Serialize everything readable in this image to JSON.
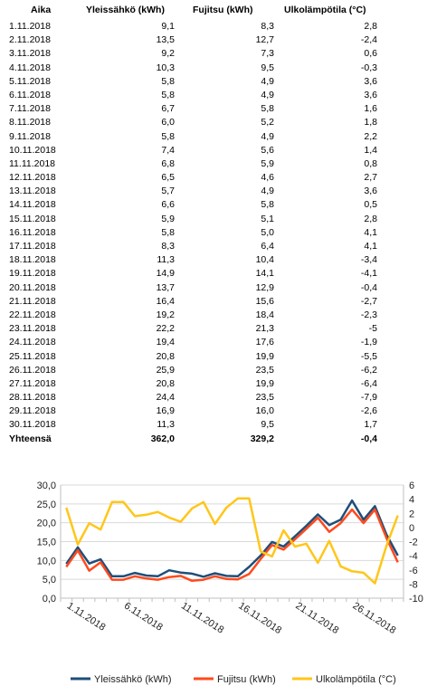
{
  "table": {
    "headers": [
      "Aika",
      "Yleissähkö (kWh)",
      "Fujitsu (kWh)",
      "Ulkolämpötila (°C)"
    ],
    "rows": [
      [
        "1.11.2018",
        "9,1",
        "8,3",
        "2,8"
      ],
      [
        "2.11.2018",
        "13,5",
        "12,7",
        "-2,4"
      ],
      [
        "3.11.2018",
        "9,2",
        "7,3",
        "0,6"
      ],
      [
        "4.11.2018",
        "10,3",
        "9,5",
        "-0,3"
      ],
      [
        "5.11.2018",
        "5,8",
        "4,9",
        "3,6"
      ],
      [
        "6.11.2018",
        "5,8",
        "4,9",
        "3,6"
      ],
      [
        "7.11.2018",
        "6,7",
        "5,8",
        "1,6"
      ],
      [
        "8.11.2018",
        "6,0",
        "5,2",
        "1,8"
      ],
      [
        "9.11.2018",
        "5,8",
        "4,9",
        "2,2"
      ],
      [
        "10.11.2018",
        "7,4",
        "5,6",
        "1,4"
      ],
      [
        "11.11.2018",
        "6,8",
        "5,9",
        "0,8"
      ],
      [
        "12.11.2018",
        "6,5",
        "4,6",
        "2,7"
      ],
      [
        "13.11.2018",
        "5,7",
        "4,9",
        "3,6"
      ],
      [
        "14.11.2018",
        "6,6",
        "5,8",
        "0,5"
      ],
      [
        "15.11.2018",
        "5,9",
        "5,1",
        "2,8"
      ],
      [
        "16.11.2018",
        "5,8",
        "5,0",
        "4,1"
      ],
      [
        "17.11.2018",
        "8,3",
        "6,4",
        "4,1"
      ],
      [
        "18.11.2018",
        "11,3",
        "10,4",
        "-3,4"
      ],
      [
        "19.11.2018",
        "14,9",
        "14,1",
        "-4,1"
      ],
      [
        "20.11.2018",
        "13,7",
        "12,9",
        "-0,4"
      ],
      [
        "21.11.2018",
        "16,4",
        "15,6",
        "-2,7"
      ],
      [
        "22.11.2018",
        "19,2",
        "18,4",
        "-2,3"
      ],
      [
        "23.11.2018",
        "22,2",
        "21,3",
        "-5"
      ],
      [
        "24.11.2018",
        "19,4",
        "17,6",
        "-1,9"
      ],
      [
        "25.11.2018",
        "20,8",
        "19,9",
        "-5,5"
      ],
      [
        "26.11.2018",
        "25,9",
        "23,5",
        "-6,2"
      ],
      [
        "27.11.2018",
        "20,8",
        "19,9",
        "-6,4"
      ],
      [
        "28.11.2018",
        "24,4",
        "23,5",
        "-7,9"
      ],
      [
        "29.11.2018",
        "16,9",
        "16,0",
        "-2,6"
      ],
      [
        "30.11.2018",
        "11,3",
        "9,5",
        "1,7"
      ]
    ],
    "total": [
      "Yhteensä",
      "362,0",
      "329,2",
      "-0,4"
    ]
  },
  "chart_data": {
    "type": "line",
    "x": [
      "1.11.2018",
      "2.11.2018",
      "3.11.2018",
      "4.11.2018",
      "5.11.2018",
      "6.11.2018",
      "7.11.2018",
      "8.11.2018",
      "9.11.2018",
      "10.11.2018",
      "11.11.2018",
      "12.11.2018",
      "13.11.2018",
      "14.11.2018",
      "15.11.2018",
      "16.11.2018",
      "17.11.2018",
      "18.11.2018",
      "19.11.2018",
      "20.11.2018",
      "21.11.2018",
      "22.11.2018",
      "23.11.2018",
      "24.11.2018",
      "25.11.2018",
      "26.11.2018",
      "27.11.2018",
      "28.11.2018",
      "29.11.2018",
      "30.11.2018"
    ],
    "x_tick_labels": [
      "1.11.2018",
      "6.11.2018",
      "11.11.2018",
      "16.11.2018",
      "21.11.2018",
      "26.11.2018"
    ],
    "y_left": {
      "range": [
        0,
        30
      ],
      "ticks": [
        "0,0",
        "5,0",
        "10,0",
        "15,0",
        "20,0",
        "25,0",
        "30,0"
      ]
    },
    "y_right": {
      "range": [
        -10,
        6
      ],
      "ticks": [
        "-10",
        "-8",
        "-6",
        "-4",
        "-2",
        "0",
        "2",
        "4",
        "6"
      ]
    },
    "grid": "horizontal",
    "legend_position": "bottom",
    "series": [
      {
        "name": "Yleissähkö (kWh)",
        "axis": "left",
        "color": "#1f4e79",
        "values": [
          9.1,
          13.5,
          9.2,
          10.3,
          5.8,
          5.8,
          6.7,
          6.0,
          5.8,
          7.4,
          6.8,
          6.5,
          5.7,
          6.6,
          5.9,
          5.8,
          8.3,
          11.3,
          14.9,
          13.7,
          16.4,
          19.2,
          22.2,
          19.4,
          20.8,
          25.9,
          20.8,
          24.4,
          16.9,
          11.3
        ]
      },
      {
        "name": "Fujitsu (kWh)",
        "axis": "left",
        "color": "#ff4a1c",
        "values": [
          8.3,
          12.7,
          7.3,
          9.5,
          4.9,
          4.9,
          5.8,
          5.2,
          4.9,
          5.6,
          5.9,
          4.6,
          4.9,
          5.8,
          5.1,
          5.0,
          6.4,
          10.4,
          14.1,
          12.9,
          15.6,
          18.4,
          21.3,
          17.6,
          19.9,
          23.5,
          19.9,
          23.5,
          16.0,
          9.5
        ]
      },
      {
        "name": "Ulkolämpötila (°C)",
        "axis": "right",
        "color": "#ffc61a",
        "values": [
          2.8,
          -2.4,
          0.6,
          -0.3,
          3.6,
          3.6,
          1.6,
          1.8,
          2.2,
          1.4,
          0.8,
          2.7,
          3.6,
          0.5,
          2.8,
          4.1,
          4.1,
          -3.4,
          -4.1,
          -0.4,
          -2.7,
          -2.3,
          -5,
          -1.9,
          -5.5,
          -6.2,
          -6.4,
          -7.9,
          -2.6,
          1.7
        ]
      }
    ]
  }
}
